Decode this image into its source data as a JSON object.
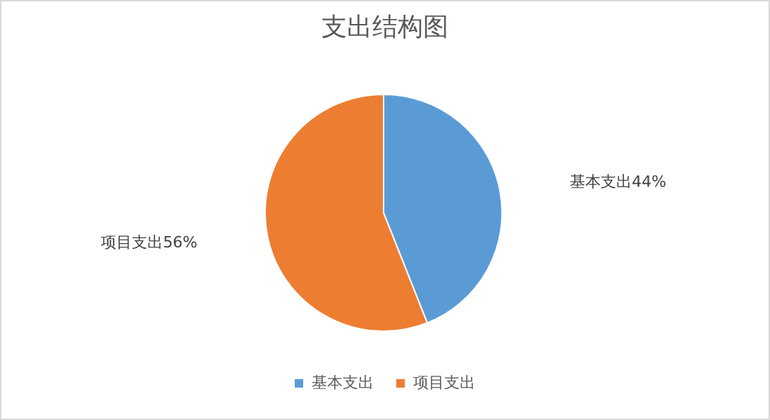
{
  "chart_data": {
    "type": "pie",
    "title": "支出结构图",
    "categories": [
      "基本支出",
      "项目支出"
    ],
    "values": [
      44,
      56
    ],
    "colors": [
      "#5b9bd5",
      "#ed7d31"
    ],
    "value_labels": [
      "基本支出44%",
      "项目支出56%"
    ],
    "legend": "bottom"
  }
}
